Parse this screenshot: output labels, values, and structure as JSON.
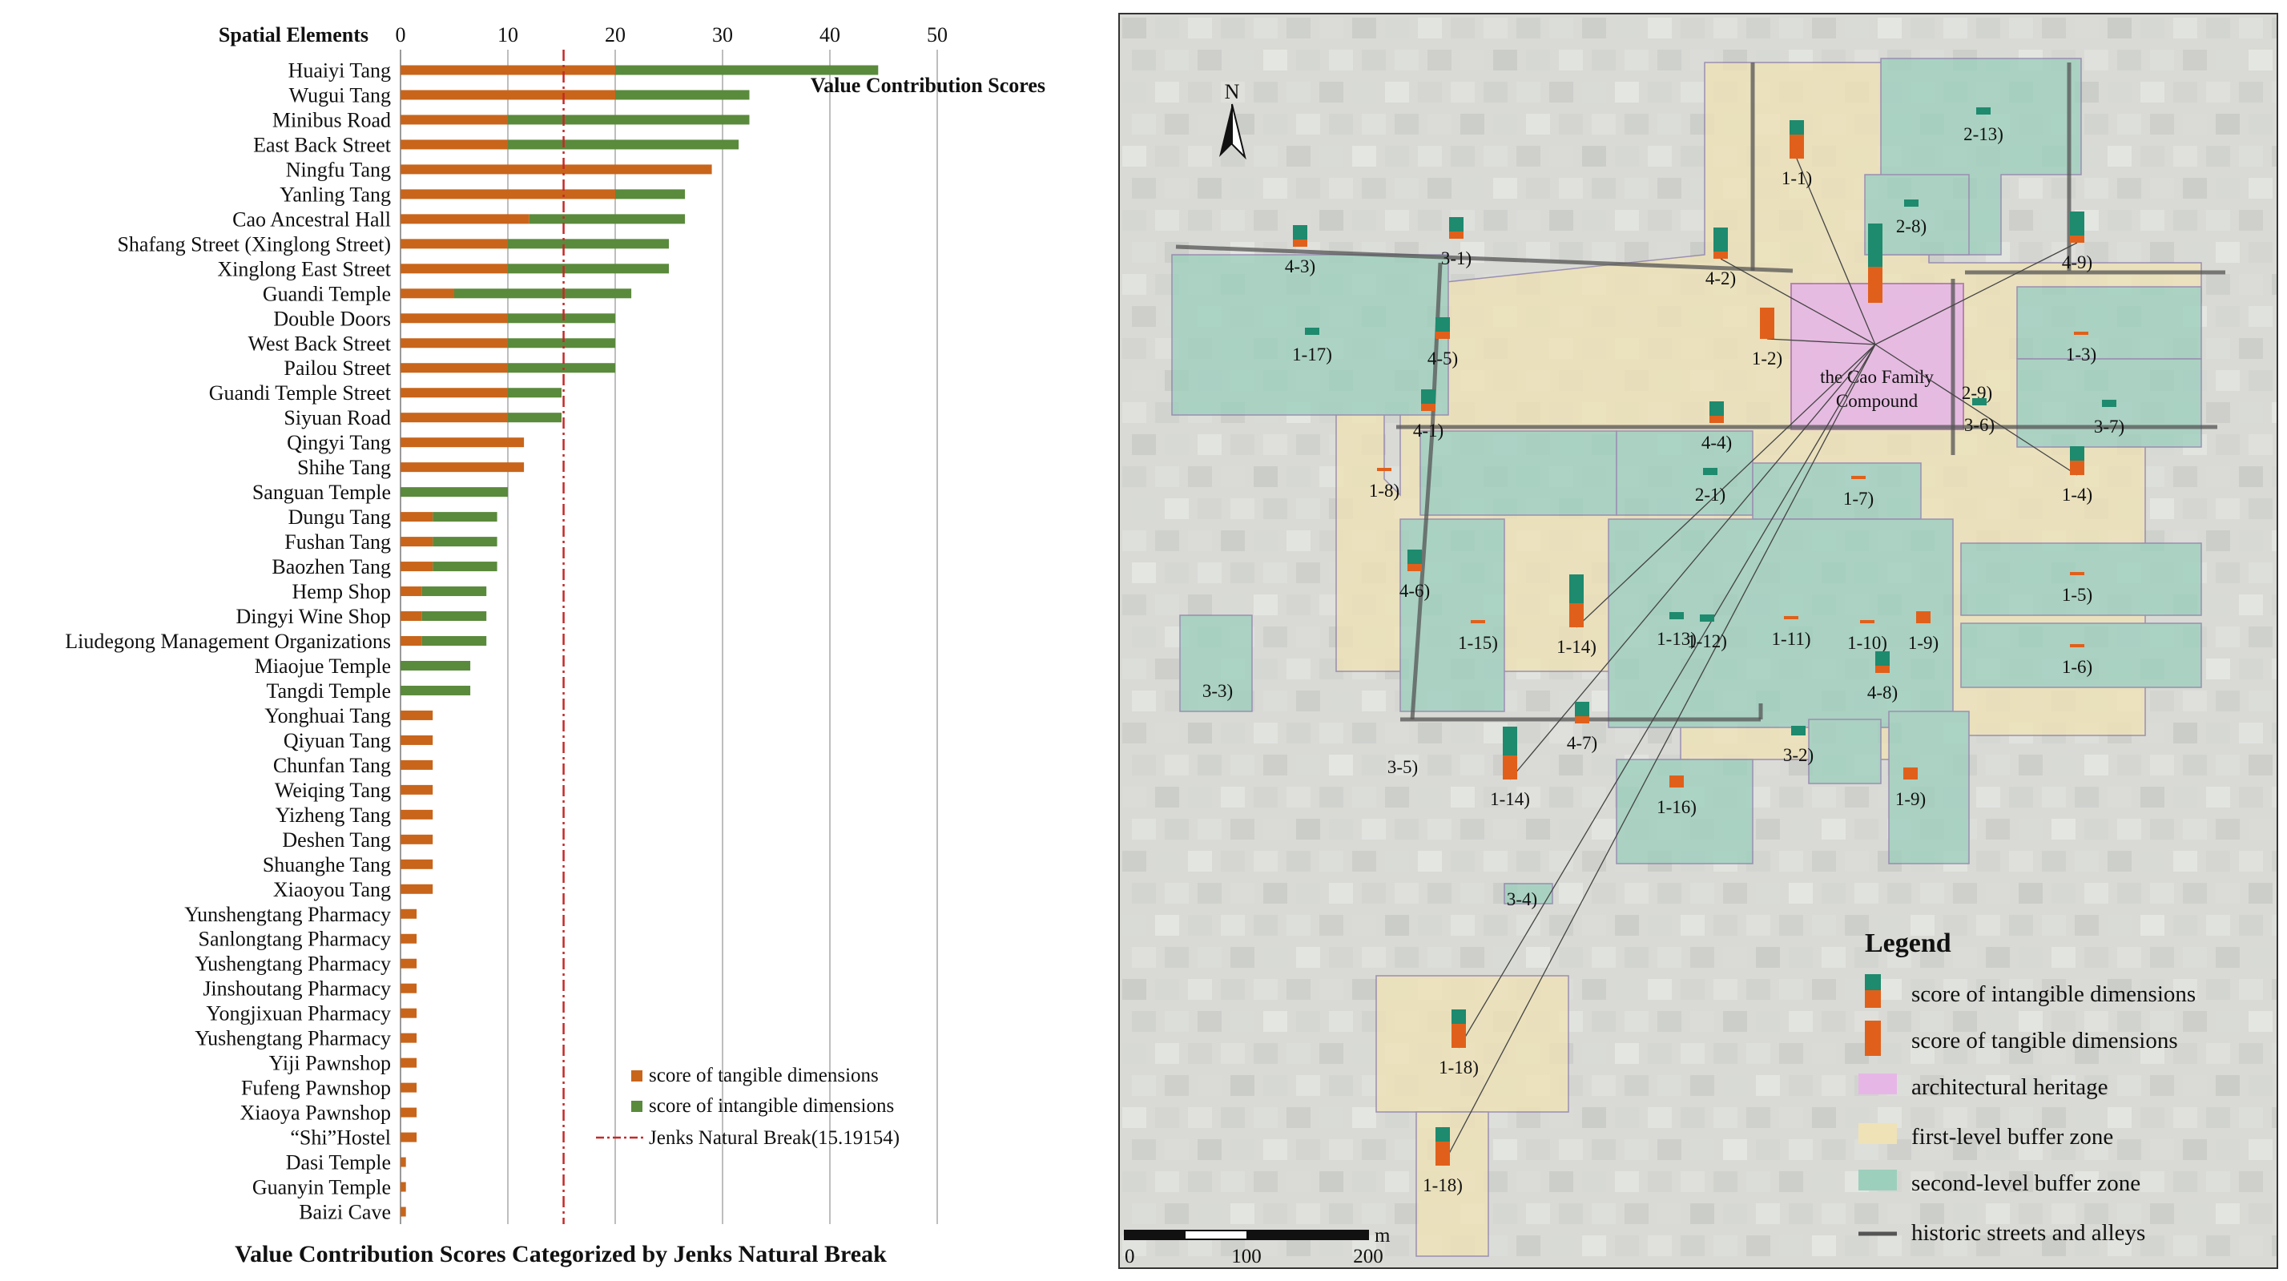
{
  "chart_data": {
    "type": "bar",
    "orientation": "horizontal",
    "stacked": true,
    "title": "Value Contribution Scores Categorized by Jenks Natural Break",
    "xlabel": "Value Contribution Scores",
    "ylabel": "Spatial Elements",
    "xlim": [
      0,
      50
    ],
    "xticks": [
      "0",
      "10",
      "20",
      "30",
      "40",
      "50"
    ],
    "grid": true,
    "legend_position": "bottom-right",
    "categories": [
      "Huaiyi Tang",
      "Wugui Tang",
      "Minibus Road",
      "East Back Street",
      "Ningfu Tang",
      "Yanling Tang",
      "Cao Ancestral Hall",
      "Shafang Street (Xinglong Street)",
      "Xinglong East Street",
      "Guandi Temple",
      "Double Doors",
      "West Back Street",
      "Pailou Street",
      "Guandi Temple Street",
      "Siyuan Road",
      "Qingyi Tang",
      "Shihe Tang",
      "Sanguan Temple",
      "Dungu Tang",
      "Fushan Tang",
      "Baozhen Tang",
      "Hemp Shop",
      "Dingyi Wine Shop",
      "Liudegong Management Organizations",
      "Miaojue Temple",
      "Tangdi Temple",
      "Yonghuai Tang",
      "Qiyuan Tang",
      "Chunfan Tang",
      "Weiqing Tang",
      "Yizheng Tang",
      "Deshen Tang",
      "Shuanghe Tang",
      "Xiaoyou Tang",
      "Yunshengtang Pharmacy",
      "Sanlongtang Pharmacy",
      "Yushengtang Pharmacy",
      "Jinshoutang Pharmacy",
      "Yongjixuan Pharmacy",
      "Yushengtang Pharmacy",
      "Yiji Pawnshop",
      "Fufeng Pawnshop",
      "Xiaoya Pawnshop",
      "“Shi”Hostel",
      "Dasi Temple",
      "Guanyin Temple",
      "Baizi Cave"
    ],
    "series": [
      {
        "name": "score of tangible dimensions",
        "color": "#c8651b",
        "values": [
          20,
          20,
          10,
          10,
          29,
          20,
          12,
          10,
          10,
          5,
          10,
          10,
          10,
          10,
          10,
          11.5,
          11.5,
          0,
          3,
          3,
          3,
          2,
          2,
          2,
          0,
          0,
          3,
          3,
          3,
          3,
          3,
          3,
          3,
          3,
          1.5,
          1.5,
          1.5,
          1.5,
          1.5,
          1.5,
          1.5,
          1.5,
          1.5,
          1.5,
          0.5,
          0.5,
          0.5
        ]
      },
      {
        "name": "score of intangible dimensions",
        "color": "#5a8a3c",
        "values": [
          24.5,
          12.5,
          22.5,
          21.5,
          0,
          6.5,
          14.5,
          15,
          15,
          16.5,
          10,
          10,
          10,
          5,
          5,
          0,
          0,
          10,
          6,
          6,
          6,
          6,
          6,
          6,
          6.5,
          6.5,
          0,
          0,
          0,
          0,
          0,
          0,
          0,
          0,
          0,
          0,
          0,
          0,
          0,
          0,
          0,
          0,
          0,
          0,
          0,
          0,
          0
        ]
      }
    ],
    "reference_line": {
      "name": "Jenks Natural Break(15.19154)",
      "value": 15.19154,
      "color": "#c62828"
    }
  },
  "map": {
    "north_label": "N",
    "center_label_line1": "the Cao Family",
    "center_label_line2": "Compound",
    "scale_labels": [
      "0",
      "100",
      "200"
    ],
    "scale_unit": "m",
    "legend": {
      "title": "Legend",
      "items": [
        {
          "label": "score of intangible dimensions",
          "color": "#1e8a6e"
        },
        {
          "label": "score of tangible dimensions",
          "color": "#e0601b"
        },
        {
          "label": "architectural heritage",
          "color": "#e6b7e6"
        },
        {
          "label": "first-level buffer zone",
          "color": "#efe2b6"
        },
        {
          "label": "second-level buffer zone",
          "color": "#9dcfbd"
        },
        {
          "label": "historic streets and alleys",
          "color": "#555555"
        }
      ]
    },
    "sites": [
      {
        "label": "1-1)",
        "tangible": 1.0,
        "intangible": 0.6
      },
      {
        "label": "2-13)",
        "tangible": 0,
        "intangible": 0.3
      },
      {
        "label": "2-8)",
        "tangible": 0,
        "intangible": 0.3
      },
      {
        "label": "4-3)",
        "tangible": 0.3,
        "intangible": 0.6
      },
      {
        "label": "3-1)",
        "tangible": 0.3,
        "intangible": 0.6
      },
      {
        "label": "4-2)",
        "tangible": 0.3,
        "intangible": 1.0
      },
      {
        "label": "4-9)",
        "tangible": 0.3,
        "intangible": 1.0
      },
      {
        "label": "1-17)",
        "tangible": 0,
        "intangible": 0.3
      },
      {
        "label": "4-5)",
        "tangible": 0.3,
        "intangible": 0.6
      },
      {
        "label": "1-2)",
        "tangible": 1.3,
        "intangible": 0
      },
      {
        "label": "1-3)",
        "tangible": 0.1,
        "intangible": 0
      },
      {
        "label": "2-9)",
        "tangible": 0,
        "intangible": 0
      },
      {
        "label": "3-7)",
        "tangible": 0,
        "intangible": 0.3
      },
      {
        "label": "3-6)",
        "tangible": 0,
        "intangible": 0.3
      },
      {
        "label": "4-1)",
        "tangible": 0.3,
        "intangible": 0.6
      },
      {
        "label": "4-4)",
        "tangible": 0.3,
        "intangible": 0.6
      },
      {
        "label": "1-8)",
        "tangible": 0.1,
        "intangible": 0
      },
      {
        "label": "2-1)",
        "tangible": 0,
        "intangible": 0.3
      },
      {
        "label": "1-7)",
        "tangible": 0.1,
        "intangible": 0
      },
      {
        "label": "1-4)",
        "tangible": 0.6,
        "intangible": 0.6
      },
      {
        "label": "4-6)",
        "tangible": 0.3,
        "intangible": 0.6
      },
      {
        "label": "1-15)",
        "tangible": 0.1,
        "intangible": 0
      },
      {
        "label": "1-14)",
        "tangible": 1.0,
        "intangible": 1.2
      },
      {
        "label": "1-13)",
        "tangible": 0,
        "intangible": 0.3
      },
      {
        "label": "1-12)",
        "tangible": 0,
        "intangible": 0.3
      },
      {
        "label": "1-11)",
        "tangible": 0.1,
        "intangible": 0
      },
      {
        "label": "1-10)",
        "tangible": 0.1,
        "intangible": 0
      },
      {
        "label": "1-9)",
        "tangible": 0.5,
        "intangible": 0
      },
      {
        "label": "1-5)",
        "tangible": 0.1,
        "intangible": 0
      },
      {
        "label": "1-6)",
        "tangible": 0.1,
        "intangible": 0
      },
      {
        "label": "3-3)",
        "tangible": 0,
        "intangible": 0
      },
      {
        "label": "4-8)",
        "tangible": 0.3,
        "intangible": 0.6
      },
      {
        "label": "4-7)",
        "tangible": 0.3,
        "intangible": 0.6
      },
      {
        "label": "3-2)",
        "tangible": 0,
        "intangible": 0.4
      },
      {
        "label": "3-5)",
        "tangible": 0,
        "intangible": 0
      },
      {
        "label": "1-14)",
        "tangible": 1.0,
        "intangible": 1.2
      },
      {
        "label": "1-16)",
        "tangible": 0.5,
        "intangible": 0
      },
      {
        "label": "1-9)",
        "tangible": 0.5,
        "intangible": 0
      },
      {
        "label": "3-4)",
        "tangible": 0,
        "intangible": 0
      },
      {
        "label": "1-18)",
        "tangible": 1.0,
        "intangible": 0.6
      },
      {
        "label": "1-18)",
        "tangible": 1.0,
        "intangible": 0.6
      },
      {
        "label": "",
        "tangible": 1.5,
        "intangible": 1.8
      }
    ]
  }
}
